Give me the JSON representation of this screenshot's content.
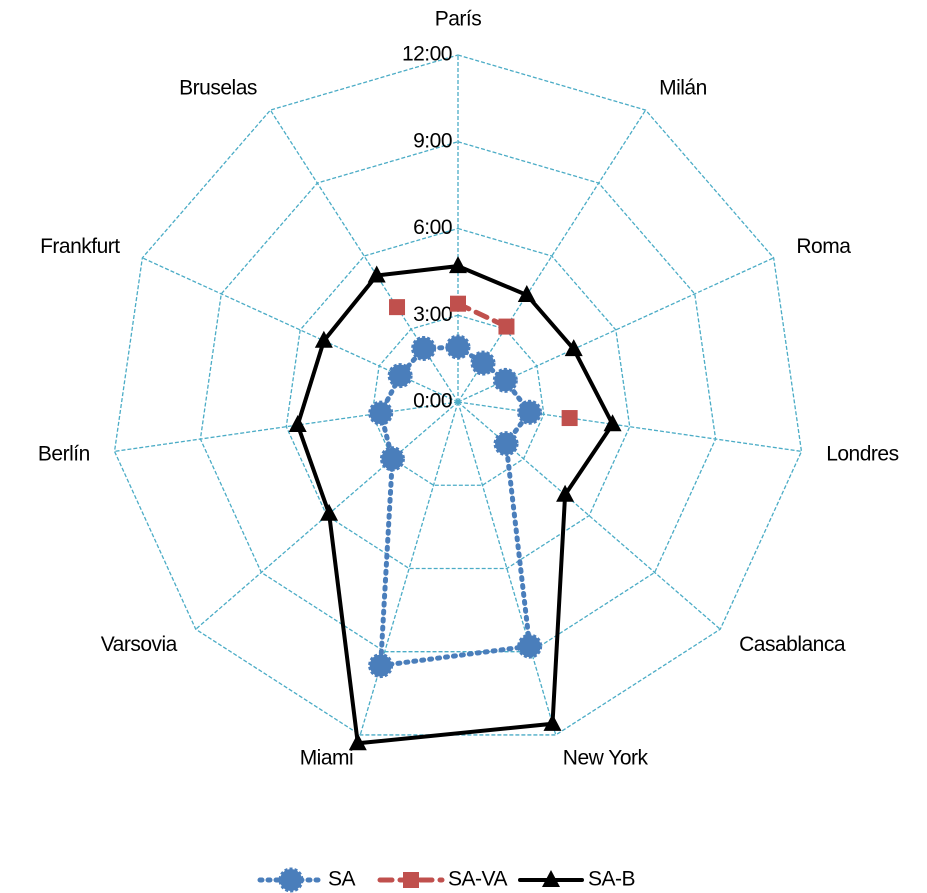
{
  "chart_data": {
    "type": "radar",
    "categories": [
      "París",
      "Milán",
      "Roma",
      "Londres",
      "Casablanca",
      "New York",
      "Miami",
      "Varsovia",
      "Berlín",
      "Frankfurt",
      "Bruselas"
    ],
    "ylim": [
      0,
      12
    ],
    "yticks": [
      {
        "value": 0,
        "label": "0:00"
      },
      {
        "value": 3,
        "label": "3:00"
      },
      {
        "value": 6,
        "label": "6:00"
      },
      {
        "value": 9,
        "label": "9:00"
      },
      {
        "value": 12,
        "label": "12:00"
      }
    ],
    "grid": true,
    "grid_color": "#4bacc6",
    "legend": "bottom",
    "series": [
      {
        "name": "SA",
        "color": "#4a7ebb",
        "marker": "circle",
        "line_style": "dotted",
        "values": [
          1.9,
          1.6,
          1.8,
          2.5,
          2.2,
          8.8,
          9.5,
          3.0,
          2.7,
          2.2,
          2.2
        ]
      },
      {
        "name": "SA-VA",
        "color": "#c0504d",
        "marker": "square",
        "line_style": "dashed",
        "values": [
          3.4,
          3.1,
          null,
          3.9,
          null,
          null,
          null,
          null,
          null,
          null,
          3.9
        ]
      },
      {
        "name": "SA-B",
        "color": "#000000",
        "marker": "triangle",
        "line_style": "solid",
        "values": [
          4.7,
          4.4,
          4.4,
          5.4,
          4.9,
          11.6,
          12.3,
          5.9,
          5.6,
          5.1,
          5.2
        ]
      }
    ]
  }
}
